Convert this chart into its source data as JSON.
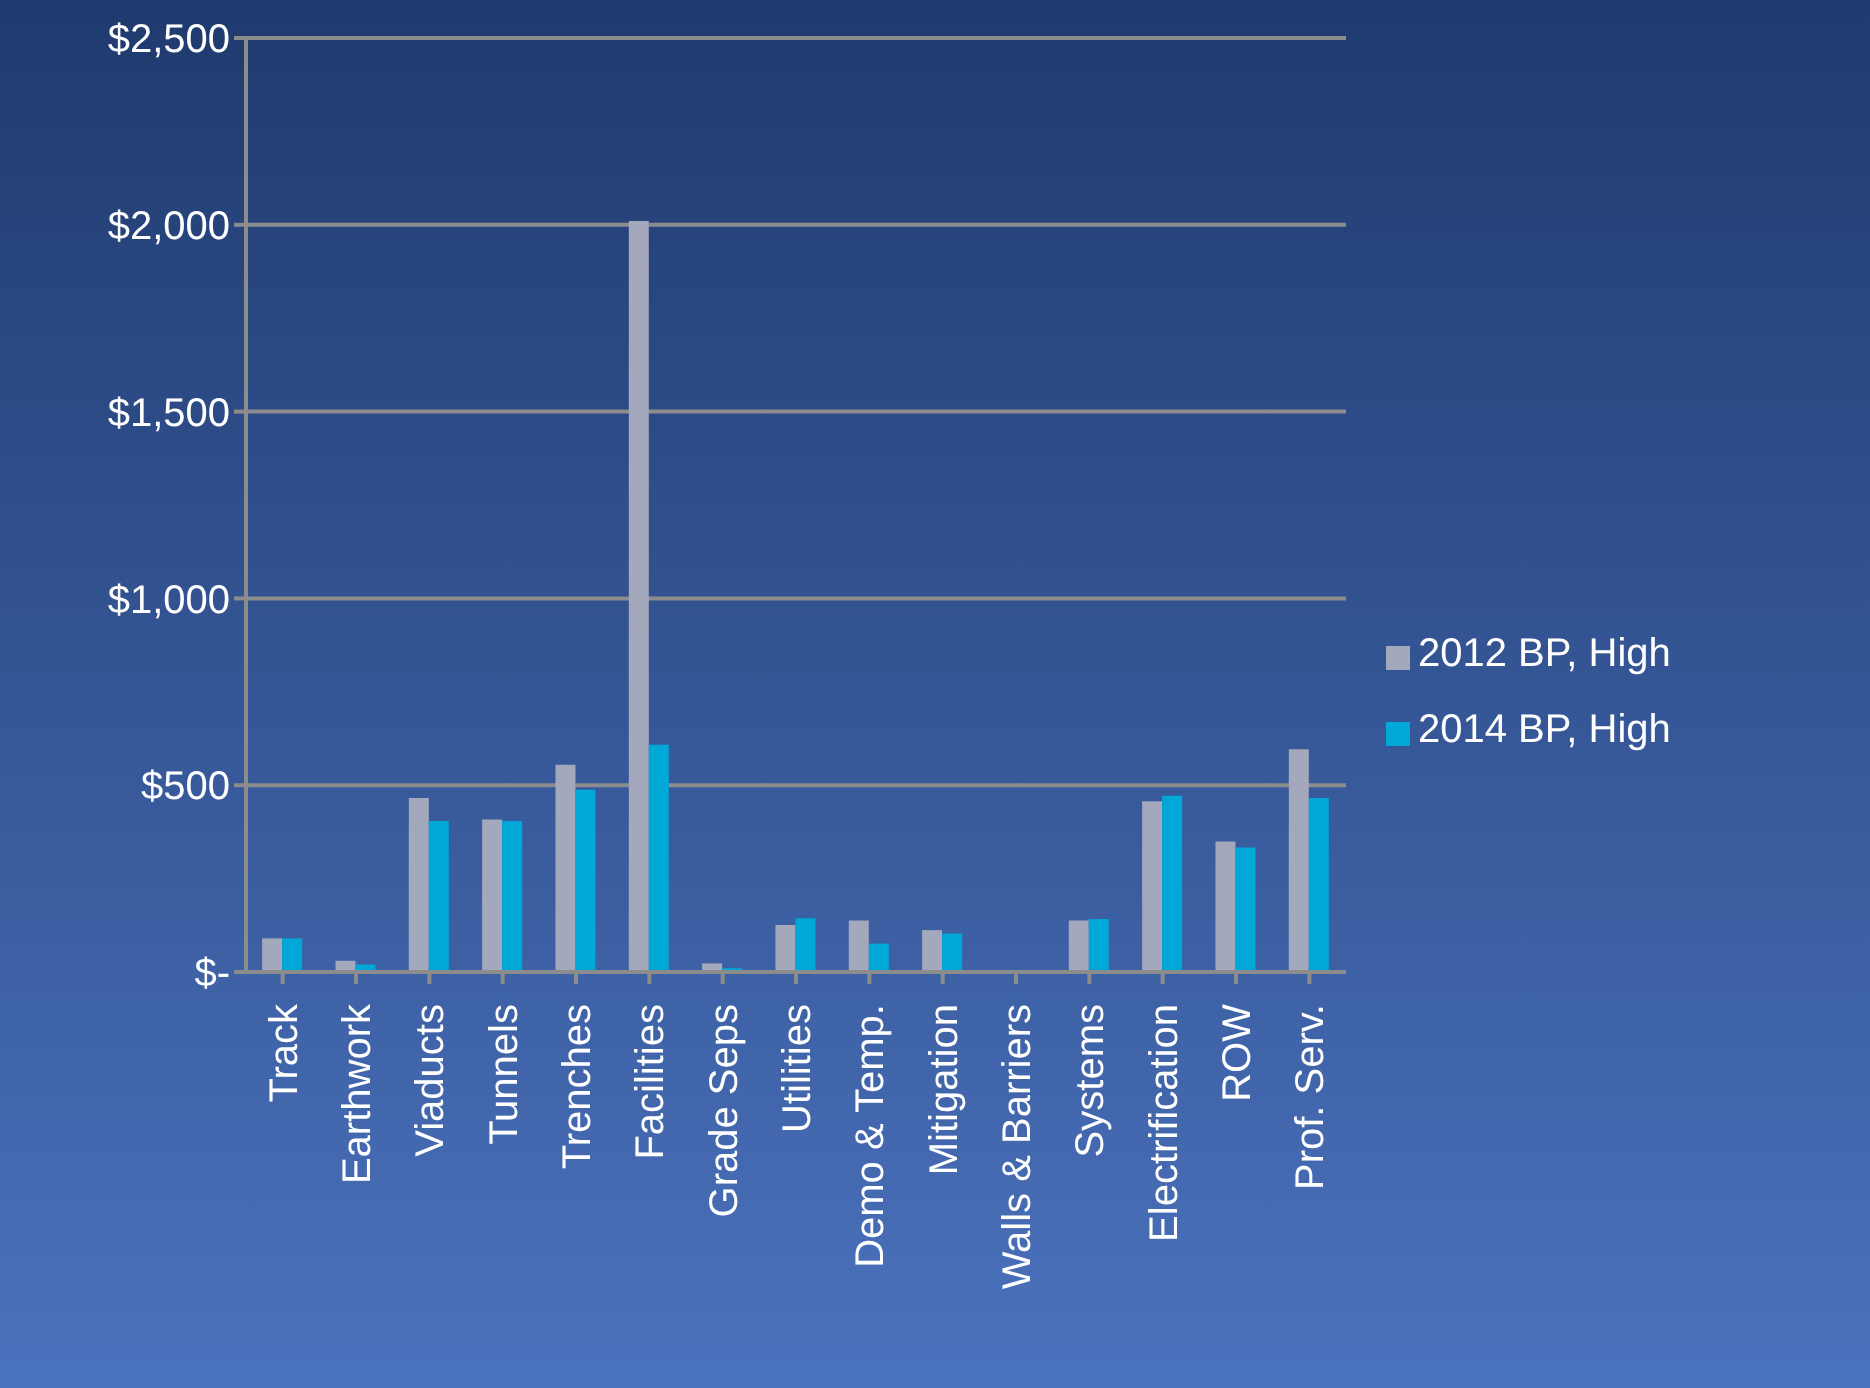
{
  "chart_data": {
    "type": "bar",
    "categories": [
      "Track",
      "Earthwork",
      "Viaducts",
      "Tunnels",
      "Trenches",
      "Facilities",
      "Grade Seps",
      "Utilities",
      "Demo & Temp.",
      "Mitigation",
      "Walls & Barriers",
      "Systems",
      "Electrification",
      "ROW",
      "Prof. Serv."
    ],
    "series": [
      {
        "name": "2012 BP, High",
        "color": "#a4a8bc",
        "values": [
          90,
          30,
          466,
          408,
          555,
          2010,
          23,
          126,
          138,
          112,
          0,
          138,
          457,
          349,
          596
        ]
      },
      {
        "name": "2014 BP, High",
        "color": "#00a8d8",
        "values": [
          90,
          20,
          404,
          404,
          488,
          608,
          10,
          144,
          76,
          103,
          0,
          142,
          472,
          333,
          466
        ]
      }
    ],
    "ylim": [
      0,
      2500
    ],
    "yticks": [
      {
        "value": 0,
        "label": "$-"
      },
      {
        "value": 500,
        "label": "$500"
      },
      {
        "value": 1000,
        "label": "$1,000"
      },
      {
        "value": 1500,
        "label": "$1,500"
      },
      {
        "value": 2000,
        "label": "$2,000"
      },
      {
        "value": 2500,
        "label": "$2,500"
      }
    ],
    "grid": "y",
    "legend": "right"
  }
}
